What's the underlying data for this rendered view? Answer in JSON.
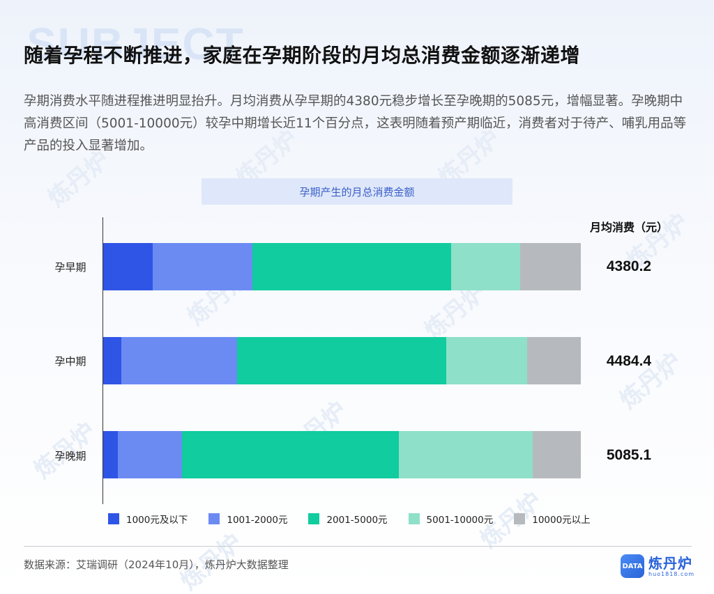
{
  "watermark": {
    "bg_text": "SUBJECT",
    "repeat_text": "炼丹炉"
  },
  "header": {
    "title": "随着孕程不断推进，家庭在孕期阶段的月均总消费金额逐渐递增",
    "description": "孕期消费水平随进程推进明显抬升。月均消费从孕早期的4380元稳步增长至孕晚期的5085元，增幅显著。孕晚期中高消费区间（5001-10000元）较孕中期增长近11个百分点，这表明随着预产期临近，消费者对于待产、哺乳用品等产品的投入显著增加。"
  },
  "chart": {
    "title": "孕期产生的月总消费金额",
    "value_header": "月均消费（元）",
    "rows": [
      {
        "label": "孕早期",
        "value": "4380.2"
      },
      {
        "label": "孕中期",
        "value": "4484.4"
      },
      {
        "label": "孕晚期",
        "value": "5085.1"
      }
    ],
    "legend": [
      {
        "label": "1000元及以下",
        "color": "#2f55e6"
      },
      {
        "label": "1001-2000元",
        "color": "#6b8bf3"
      },
      {
        "label": "2001-5000元",
        "color": "#10cc9f"
      },
      {
        "label": "5001-10000元",
        "color": "#8ee0c8"
      },
      {
        "label": "10000元以上",
        "color": "#b6babe"
      }
    ]
  },
  "chart_data": {
    "type": "bar",
    "orientation": "horizontal",
    "stacked": true,
    "percent_stacked": true,
    "title": "孕期产生的月总消费金额",
    "xlabel": "",
    "ylabel": "",
    "categories": [
      "孕早期",
      "孕中期",
      "孕晚期"
    ],
    "series": [
      {
        "name": "1000元及以下",
        "color": "#2f55e6",
        "values": [
          10.3,
          3.8,
          3.1
        ]
      },
      {
        "name": "1001-2000元",
        "color": "#6b8bf3",
        "values": [
          20.9,
          24.3,
          13.4
        ]
      },
      {
        "name": "2001-5000元",
        "color": "#10cc9f",
        "values": [
          41.7,
          43.8,
          45.4
        ]
      },
      {
        "name": "5001-10000元",
        "color": "#8ee0c8",
        "values": [
          14.4,
          16.9,
          28.0
        ]
      },
      {
        "name": "10000元以上",
        "color": "#b6babe",
        "values": [
          12.7,
          11.2,
          10.1
        ]
      }
    ],
    "annotations": {
      "header": "月均消费（元）",
      "values": [
        4380.2,
        4484.4,
        5085.1
      ]
    },
    "xlim": [
      0,
      100
    ],
    "grid": false,
    "legend_position": "bottom"
  },
  "footer": {
    "source": "数据来源：艾瑞调研（2024年10月），炼丹炉大数据整理",
    "logo_name": "炼丹炉",
    "logo_badge": "DATA",
    "logo_url": "huo1818.com"
  }
}
